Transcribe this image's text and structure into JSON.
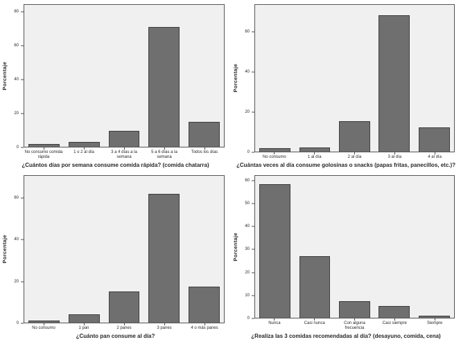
{
  "palette": {
    "bar_fill": "#6f6f6f",
    "bar_border": "#3e3e3e",
    "plot_bg": "#f0f0f0",
    "plot_border": "#555555"
  },
  "chart_data": [
    {
      "type": "bar",
      "title": "¿Cuántos días por semana consume comida rápida? (comida chatarra)",
      "ylabel": "Porcentaje",
      "categories": [
        "No consumo comida rápida",
        "1 o 2 al día",
        "3 a 4 días a la semana",
        "5 a 6 días a la semana",
        "Todos los días"
      ],
      "values": [
        1.7,
        2.9,
        9.3,
        71.3,
        14.6
      ],
      "yticks": [
        0,
        20,
        40,
        60,
        80
      ],
      "ylim": [
        0,
        84.5
      ],
      "grid": false,
      "legend": false
    },
    {
      "type": "bar",
      "title": "¿Cuántas veces al día consume golosinas o snacks (papas fritas, panecillos, etc.)?",
      "ylabel": "Porcentaje",
      "categories": [
        "No consumo",
        "1 al día",
        "2 al día",
        "3 al día",
        "4 al día"
      ],
      "values": [
        1.7,
        2.1,
        15.4,
        68.6,
        12.3
      ],
      "yticks": [
        0,
        20,
        40,
        60
      ],
      "ylim": [
        0,
        74
      ],
      "grid": false,
      "legend": false
    },
    {
      "type": "bar",
      "title": "¿Cuánto pan consume al día?",
      "ylabel": "Porcentaje",
      "categories": [
        "No consumo",
        "1 pan",
        "2 panes",
        "3 panes",
        "4 o más panes"
      ],
      "values": [
        1.1,
        4.1,
        14.9,
        62.3,
        17.4
      ],
      "yticks": [
        0,
        20,
        40,
        60
      ],
      "ylim": [
        0,
        71
      ],
      "grid": false,
      "legend": false
    },
    {
      "type": "bar",
      "title": "¿Realiza las 3 comidas recomendadas al día? (desayuno, comida, cena)",
      "ylabel": "Porcentaje",
      "categories": [
        "Nunca",
        "Casi nunca",
        "Con alguna frecuencia",
        "Casi siempre",
        "Siempre"
      ],
      "values": [
        58.9,
        27.1,
        7.3,
        5.1,
        0.9
      ],
      "yticks": [
        0,
        10,
        20,
        30,
        40,
        50,
        60
      ],
      "ylim": [
        0,
        62.5
      ],
      "grid": false,
      "legend": false
    }
  ]
}
